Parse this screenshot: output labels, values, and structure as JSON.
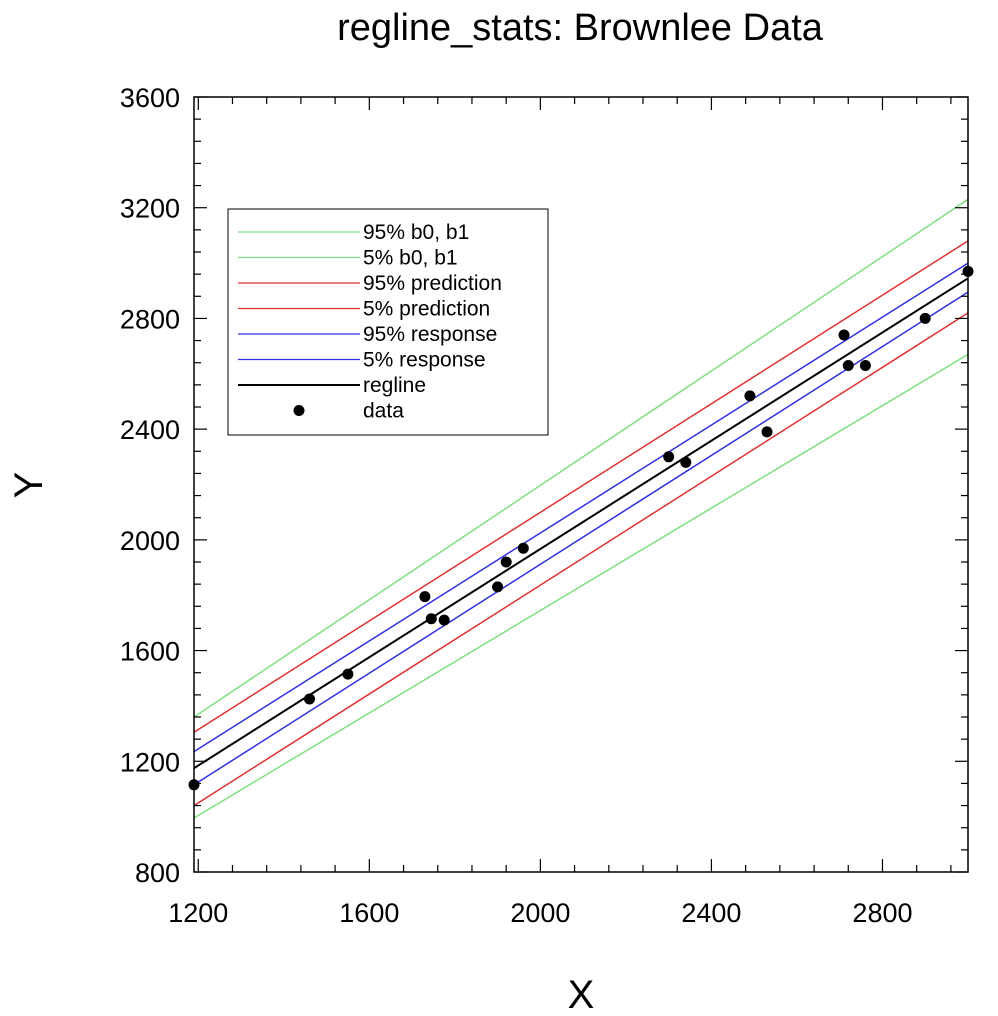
{
  "chart_data": {
    "type": "line",
    "title": "regline_stats: Brownlee Data",
    "xlabel": "X",
    "ylabel": "Y",
    "xlim": [
      1190,
      3000
    ],
    "ylim": [
      800,
      3600
    ],
    "xticks": [
      1200,
      1600,
      2000,
      2400,
      2800
    ],
    "yticks": [
      800,
      1200,
      1600,
      2000,
      2400,
      2800,
      3200,
      3600
    ],
    "grid": false,
    "legend_position": "top-left",
    "series": [
      {
        "name": "95% b0, b1",
        "color": "#7fe07f",
        "x": [
          1190,
          3000
        ],
        "y": [
          1360,
          3230
        ]
      },
      {
        "name": "5% b0, b1",
        "color": "#7fe07f",
        "x": [
          1190,
          3000
        ],
        "y": [
          995,
          2670
        ]
      },
      {
        "name": "95% prediction",
        "color": "#e03030",
        "x": [
          1190,
          3000
        ],
        "y": [
          1305,
          3080
        ]
      },
      {
        "name": "5% prediction",
        "color": "#e03030",
        "x": [
          1190,
          3000
        ],
        "y": [
          1040,
          2820
        ]
      },
      {
        "name": "95% response",
        "color": "#3030e0",
        "x": [
          1190,
          3000
        ],
        "y": [
          1235,
          3000
        ]
      },
      {
        "name": "5% response",
        "color": "#3030e0",
        "x": [
          1190,
          3000
        ],
        "y": [
          1115,
          2895
        ]
      },
      {
        "name": "regline",
        "color": "#000000",
        "x": [
          1190,
          3000
        ],
        "y": [
          1175,
          2945
        ]
      }
    ],
    "points": {
      "name": "data",
      "color": "#000000",
      "x": [
        1190,
        1460,
        1550,
        1730,
        1745,
        1775,
        1900,
        1920,
        1960,
        2300,
        2340,
        2490,
        2530,
        2710,
        2720,
        2760,
        2900,
        3000
      ],
      "y": [
        1115,
        1425,
        1515,
        1795,
        1715,
        1710,
        1830,
        1920,
        1970,
        2300,
        2280,
        2520,
        2390,
        2740,
        2630,
        2630,
        2800,
        2970
      ]
    }
  }
}
